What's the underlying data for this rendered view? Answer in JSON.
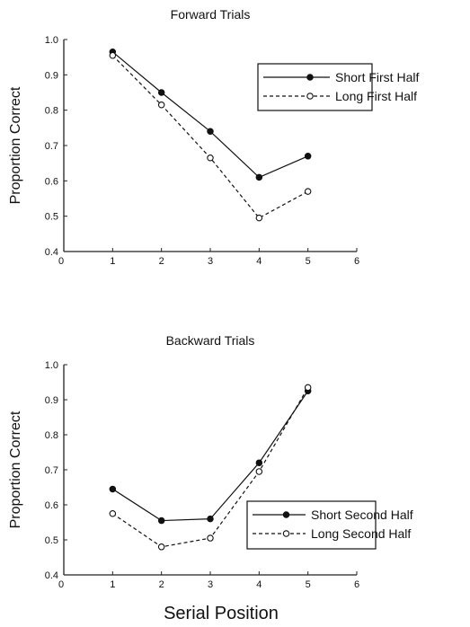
{
  "xlabel": "Serial Position",
  "chart_data": [
    {
      "type": "line",
      "title": "Forward Trials",
      "xlabel": "",
      "ylabel": "Proportion Correct",
      "xlim": [
        0,
        6
      ],
      "ylim": [
        0.4,
        1.0
      ],
      "x_ticks": [
        "0",
        "1",
        "2",
        "3",
        "4",
        "5",
        "6"
      ],
      "y_ticks": [
        "0.4",
        "0.5",
        "0.6",
        "0.7",
        "0.8",
        "0.9",
        "1.0"
      ],
      "grid": false,
      "legend_position": "top-right",
      "x": [
        1,
        2,
        3,
        4,
        5
      ],
      "series": [
        {
          "name": "Short First Half",
          "style": "solid",
          "marker": "filled-circle",
          "values": [
            0.965,
            0.85,
            0.74,
            0.61,
            0.67
          ]
        },
        {
          "name": "Long First Half",
          "style": "dashed",
          "marker": "open-circle",
          "values": [
            0.955,
            0.815,
            0.665,
            0.495,
            0.57
          ]
        }
      ]
    },
    {
      "type": "line",
      "title": "Backward Trials",
      "xlabel": "Serial Position",
      "ylabel": "Proportion Correct",
      "xlim": [
        0,
        6
      ],
      "ylim": [
        0.4,
        1.0
      ],
      "x_ticks": [
        "0",
        "1",
        "2",
        "3",
        "4",
        "5",
        "6"
      ],
      "y_ticks": [
        "0.4",
        "0.5",
        "0.6",
        "0.7",
        "0.8",
        "0.9",
        "1.0"
      ],
      "grid": false,
      "legend_position": "bottom-right",
      "x": [
        1,
        2,
        3,
        4,
        5
      ],
      "series": [
        {
          "name": "Short Second Half",
          "style": "solid",
          "marker": "filled-circle",
          "values": [
            0.645,
            0.555,
            0.56,
            0.72,
            0.925
          ]
        },
        {
          "name": "Long Second Half",
          "style": "dashed",
          "marker": "open-circle",
          "values": [
            0.575,
            0.48,
            0.505,
            0.695,
            0.935
          ]
        }
      ]
    }
  ]
}
